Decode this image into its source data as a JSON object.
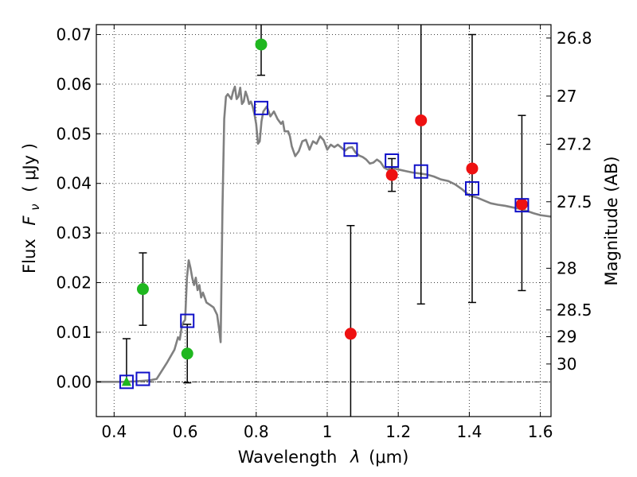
{
  "chart_data": {
    "type": "scatter",
    "xlabel": "Wavelength",
    "xlabel_symbol": "λ",
    "xlabel_unit": "(μm)",
    "ylabel": "Flux",
    "ylabel_symbol": "F",
    "ylabel_subscript": "ν",
    "ylabel_unit": "( μJy )",
    "y2label": "Magnitude (AB)",
    "xlim": [
      0.35,
      1.63
    ],
    "ylim": [
      -0.007,
      0.072
    ],
    "grid": true,
    "x_ticks": [
      0.4,
      0.6,
      0.8,
      1.0,
      1.2,
      1.4,
      1.6
    ],
    "x_tick_labels": [
      "0.4",
      "0.6",
      "0.8",
      "1",
      "1.2",
      "1.4",
      "1.6"
    ],
    "y_ticks": [
      0.0,
      0.01,
      0.02,
      0.03,
      0.04,
      0.05,
      0.06,
      0.07
    ],
    "y_tick_labels": [
      "0.00",
      "0.01",
      "0.02",
      "0.03",
      "0.04",
      "0.05",
      "0.06",
      "0.07"
    ],
    "y2_ticks": [
      {
        "label": "26.8",
        "flux": 0.0693
      },
      {
        "label": "27",
        "flux": 0.0576
      },
      {
        "label": "27.2",
        "flux": 0.0479
      },
      {
        "label": "27.5",
        "flux": 0.0363
      },
      {
        "label": "28",
        "flux": 0.0229
      },
      {
        "label": "28.5",
        "flux": 0.0145
      },
      {
        "label": "29",
        "flux": 0.0091
      },
      {
        "label": "30",
        "flux": 0.0036
      }
    ],
    "zero_line": 0.0,
    "colors": {
      "model": "#808080",
      "green": "#1fb71f",
      "red": "#ee1111",
      "squares": "#1010c8",
      "errorbar": "#000000"
    },
    "model_sed": [
      [
        0.35,
        0.0
      ],
      [
        0.4,
        0.0
      ],
      [
        0.43,
        0.0
      ],
      [
        0.46,
        0.0001
      ],
      [
        0.5,
        0.0003
      ],
      [
        0.52,
        0.0006
      ],
      [
        0.55,
        0.004
      ],
      [
        0.57,
        0.0065
      ],
      [
        0.58,
        0.009
      ],
      [
        0.585,
        0.0085
      ],
      [
        0.59,
        0.011
      ],
      [
        0.595,
        0.012
      ],
      [
        0.6,
        0.0125
      ],
      [
        0.605,
        0.021
      ],
      [
        0.61,
        0.0245
      ],
      [
        0.615,
        0.023
      ],
      [
        0.62,
        0.021
      ],
      [
        0.625,
        0.0195
      ],
      [
        0.63,
        0.021
      ],
      [
        0.635,
        0.0185
      ],
      [
        0.64,
        0.0195
      ],
      [
        0.645,
        0.017
      ],
      [
        0.65,
        0.018
      ],
      [
        0.66,
        0.016
      ],
      [
        0.67,
        0.0155
      ],
      [
        0.68,
        0.015
      ],
      [
        0.69,
        0.0135
      ],
      [
        0.695,
        0.011
      ],
      [
        0.7,
        0.008
      ],
      [
        0.705,
        0.035
      ],
      [
        0.71,
        0.053
      ],
      [
        0.715,
        0.0575
      ],
      [
        0.72,
        0.058
      ],
      [
        0.73,
        0.057
      ],
      [
        0.735,
        0.0585
      ],
      [
        0.74,
        0.0595
      ],
      [
        0.745,
        0.057
      ],
      [
        0.75,
        0.0575
      ],
      [
        0.755,
        0.0593
      ],
      [
        0.76,
        0.056
      ],
      [
        0.765,
        0.0565
      ],
      [
        0.77,
        0.0585
      ],
      [
        0.775,
        0.0575
      ],
      [
        0.78,
        0.056
      ],
      [
        0.785,
        0.0565
      ],
      [
        0.79,
        0.0555
      ],
      [
        0.795,
        0.054
      ],
      [
        0.8,
        0.052
      ],
      [
        0.805,
        0.048
      ],
      [
        0.81,
        0.0485
      ],
      [
        0.815,
        0.0525
      ],
      [
        0.82,
        0.0545
      ],
      [
        0.83,
        0.0555
      ],
      [
        0.84,
        0.0535
      ],
      [
        0.85,
        0.0545
      ],
      [
        0.86,
        0.053
      ],
      [
        0.87,
        0.052
      ],
      [
        0.875,
        0.0525
      ],
      [
        0.88,
        0.0505
      ],
      [
        0.89,
        0.0505
      ],
      [
        0.895,
        0.0495
      ],
      [
        0.9,
        0.0475
      ],
      [
        0.91,
        0.0455
      ],
      [
        0.92,
        0.0465
      ],
      [
        0.93,
        0.0485
      ],
      [
        0.94,
        0.0488
      ],
      [
        0.95,
        0.0468
      ],
      [
        0.96,
        0.0485
      ],
      [
        0.97,
        0.048
      ],
      [
        0.98,
        0.0495
      ],
      [
        0.99,
        0.0487
      ],
      [
        1.0,
        0.0468
      ],
      [
        1.01,
        0.0478
      ],
      [
        1.02,
        0.0473
      ],
      [
        1.03,
        0.0478
      ],
      [
        1.04,
        0.0472
      ],
      [
        1.05,
        0.0466
      ],
      [
        1.06,
        0.0472
      ],
      [
        1.07,
        0.0473
      ],
      [
        1.08,
        0.0462
      ],
      [
        1.09,
        0.0456
      ],
      [
        1.1,
        0.0453
      ],
      [
        1.11,
        0.0448
      ],
      [
        1.12,
        0.044
      ],
      [
        1.13,
        0.0442
      ],
      [
        1.14,
        0.0448
      ],
      [
        1.15,
        0.0443
      ],
      [
        1.16,
        0.0432
      ],
      [
        1.17,
        0.0428
      ],
      [
        1.18,
        0.0432
      ],
      [
        1.2,
        0.0428
      ],
      [
        1.22,
        0.0425
      ],
      [
        1.24,
        0.0422
      ],
      [
        1.26,
        0.042
      ],
      [
        1.28,
        0.0418
      ],
      [
        1.3,
        0.0414
      ],
      [
        1.32,
        0.0408
      ],
      [
        1.34,
        0.0405
      ],
      [
        1.36,
        0.0398
      ],
      [
        1.38,
        0.0388
      ],
      [
        1.4,
        0.0376
      ],
      [
        1.42,
        0.0372
      ],
      [
        1.44,
        0.0366
      ],
      [
        1.46,
        0.036
      ],
      [
        1.48,
        0.0357
      ],
      [
        1.5,
        0.0355
      ],
      [
        1.52,
        0.0352
      ],
      [
        1.54,
        0.0349
      ],
      [
        1.56,
        0.0345
      ],
      [
        1.58,
        0.034
      ],
      [
        1.6,
        0.0336
      ],
      [
        1.63,
        0.0333
      ]
    ],
    "green_points": [
      {
        "x": 0.435,
        "y": 0.0,
        "yerr_lo": -0.0005,
        "yerr_hi": 0.0087,
        "marker": "triangle"
      },
      {
        "x": 0.481,
        "y": 0.0187,
        "yerr_lo": 0.0114,
        "yerr_hi": 0.026,
        "marker": "circle"
      },
      {
        "x": 0.606,
        "y": 0.0057,
        "yerr_lo": -0.0002,
        "yerr_hi": 0.0116,
        "marker": "circle"
      },
      {
        "x": 0.814,
        "y": 0.068,
        "yerr_lo": 0.0618,
        "yerr_hi": 0.0735,
        "marker": "circle"
      }
    ],
    "red_points": [
      {
        "x": 1.066,
        "y": 0.0097,
        "yerr_lo": -0.0075,
        "yerr_hi": 0.0315
      },
      {
        "x": 1.182,
        "y": 0.0417,
        "yerr_lo": 0.0384,
        "yerr_hi": 0.045
      },
      {
        "x": 1.264,
        "y": 0.0527,
        "yerr_lo": 0.0157,
        "yerr_hi": 0.0735
      },
      {
        "x": 1.408,
        "y": 0.043,
        "yerr_lo": 0.016,
        "yerr_hi": 0.07
      },
      {
        "x": 1.548,
        "y": 0.0358,
        "yerr_lo": 0.0184,
        "yerr_hi": 0.0537
      }
    ],
    "model_squares": [
      {
        "x": 0.435,
        "y": 0.0
      },
      {
        "x": 0.481,
        "y": 0.0006
      },
      {
        "x": 0.606,
        "y": 0.0123
      },
      {
        "x": 0.814,
        "y": 0.0552
      },
      {
        "x": 1.066,
        "y": 0.0468
      },
      {
        "x": 1.182,
        "y": 0.0446
      },
      {
        "x": 1.264,
        "y": 0.0424
      },
      {
        "x": 1.408,
        "y": 0.039
      },
      {
        "x": 1.548,
        "y": 0.0356
      }
    ]
  }
}
